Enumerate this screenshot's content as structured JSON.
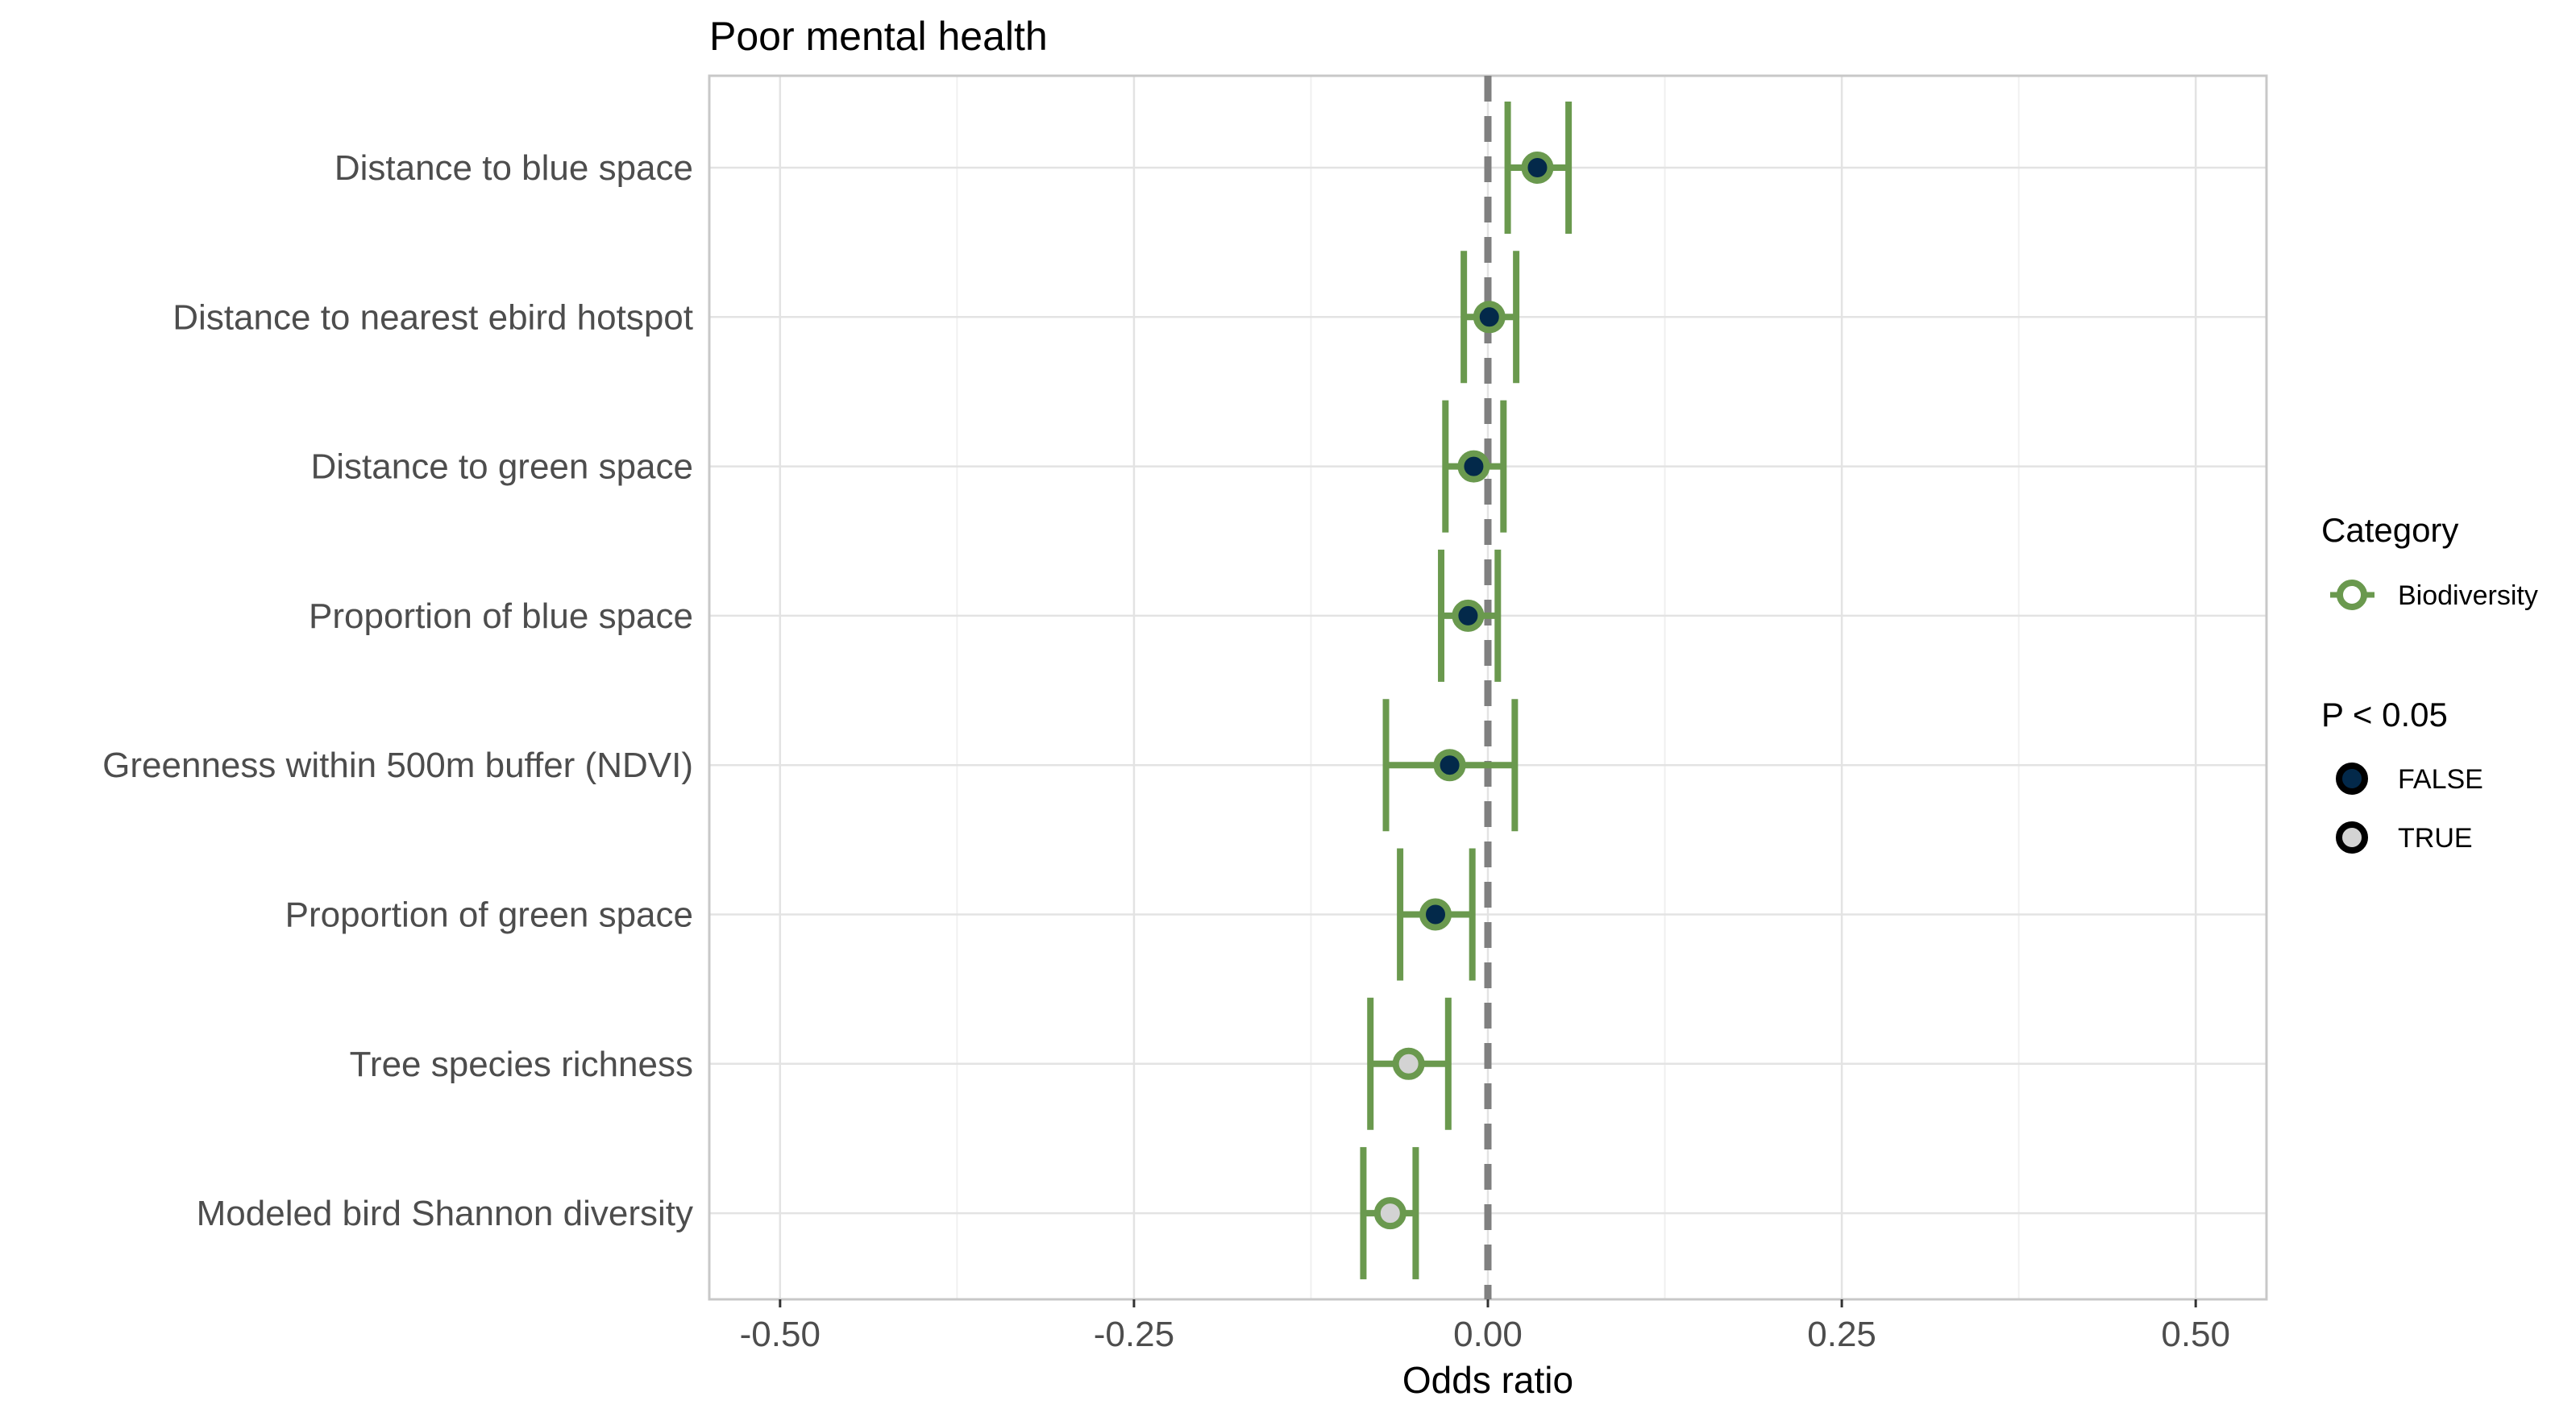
{
  "chart_data": {
    "type": "forest",
    "title": "Poor mental health",
    "xlabel": "Odds ratio",
    "ylabel": "",
    "xlim": [
      -0.55,
      0.55
    ],
    "x_ticks": [
      -0.5,
      -0.25,
      0.0,
      0.25,
      0.5
    ],
    "x_tick_labels": [
      "-0.50",
      "-0.25",
      "0.00",
      "0.25",
      "0.50"
    ],
    "reference_line": 0.0,
    "grid": true,
    "legend_position": "right",
    "colors": {
      "category_biodiversity": "#6a994e",
      "significant_false": "#03294a",
      "significant_true": "#d3d3d3",
      "reference_line": "#808080",
      "grid_major": "#e3e3e3",
      "grid_minor": "#f0f0f0",
      "panel_border": "#c8c8c8"
    },
    "legend": {
      "category_title": "Category",
      "category_items": [
        "Biodiversity"
      ],
      "significance_title": "P < 0.05",
      "significance_items": [
        "FALSE",
        "TRUE"
      ]
    },
    "rows": [
      {
        "label": "Distance to blue space",
        "estimate": 0.035,
        "ci_low": 0.014,
        "ci_high": 0.057,
        "category": "Biodiversity",
        "significant": "FALSE"
      },
      {
        "label": "Distance to nearest ebird hotspot",
        "estimate": 0.001,
        "ci_low": -0.017,
        "ci_high": 0.02,
        "category": "Biodiversity",
        "significant": "FALSE"
      },
      {
        "label": "Distance to green space",
        "estimate": -0.01,
        "ci_low": -0.03,
        "ci_high": 0.011,
        "category": "Biodiversity",
        "significant": "FALSE"
      },
      {
        "label": "Proportion of blue space",
        "estimate": -0.014,
        "ci_low": -0.033,
        "ci_high": 0.007,
        "category": "Biodiversity",
        "significant": "FALSE"
      },
      {
        "label": "Greenness within 500m buffer (NDVI)",
        "estimate": -0.027,
        "ci_low": -0.072,
        "ci_high": 0.019,
        "category": "Biodiversity",
        "significant": "FALSE"
      },
      {
        "label": "Proportion of green space",
        "estimate": -0.037,
        "ci_low": -0.062,
        "ci_high": -0.011,
        "category": "Biodiversity",
        "significant": "FALSE"
      },
      {
        "label": "Tree species richness",
        "estimate": -0.056,
        "ci_low": -0.083,
        "ci_high": -0.028,
        "category": "Biodiversity",
        "significant": "TRUE"
      },
      {
        "label": "Modeled bird Shannon diversity",
        "estimate": -0.069,
        "ci_low": -0.088,
        "ci_high": -0.051,
        "category": "Biodiversity",
        "significant": "TRUE"
      }
    ]
  }
}
